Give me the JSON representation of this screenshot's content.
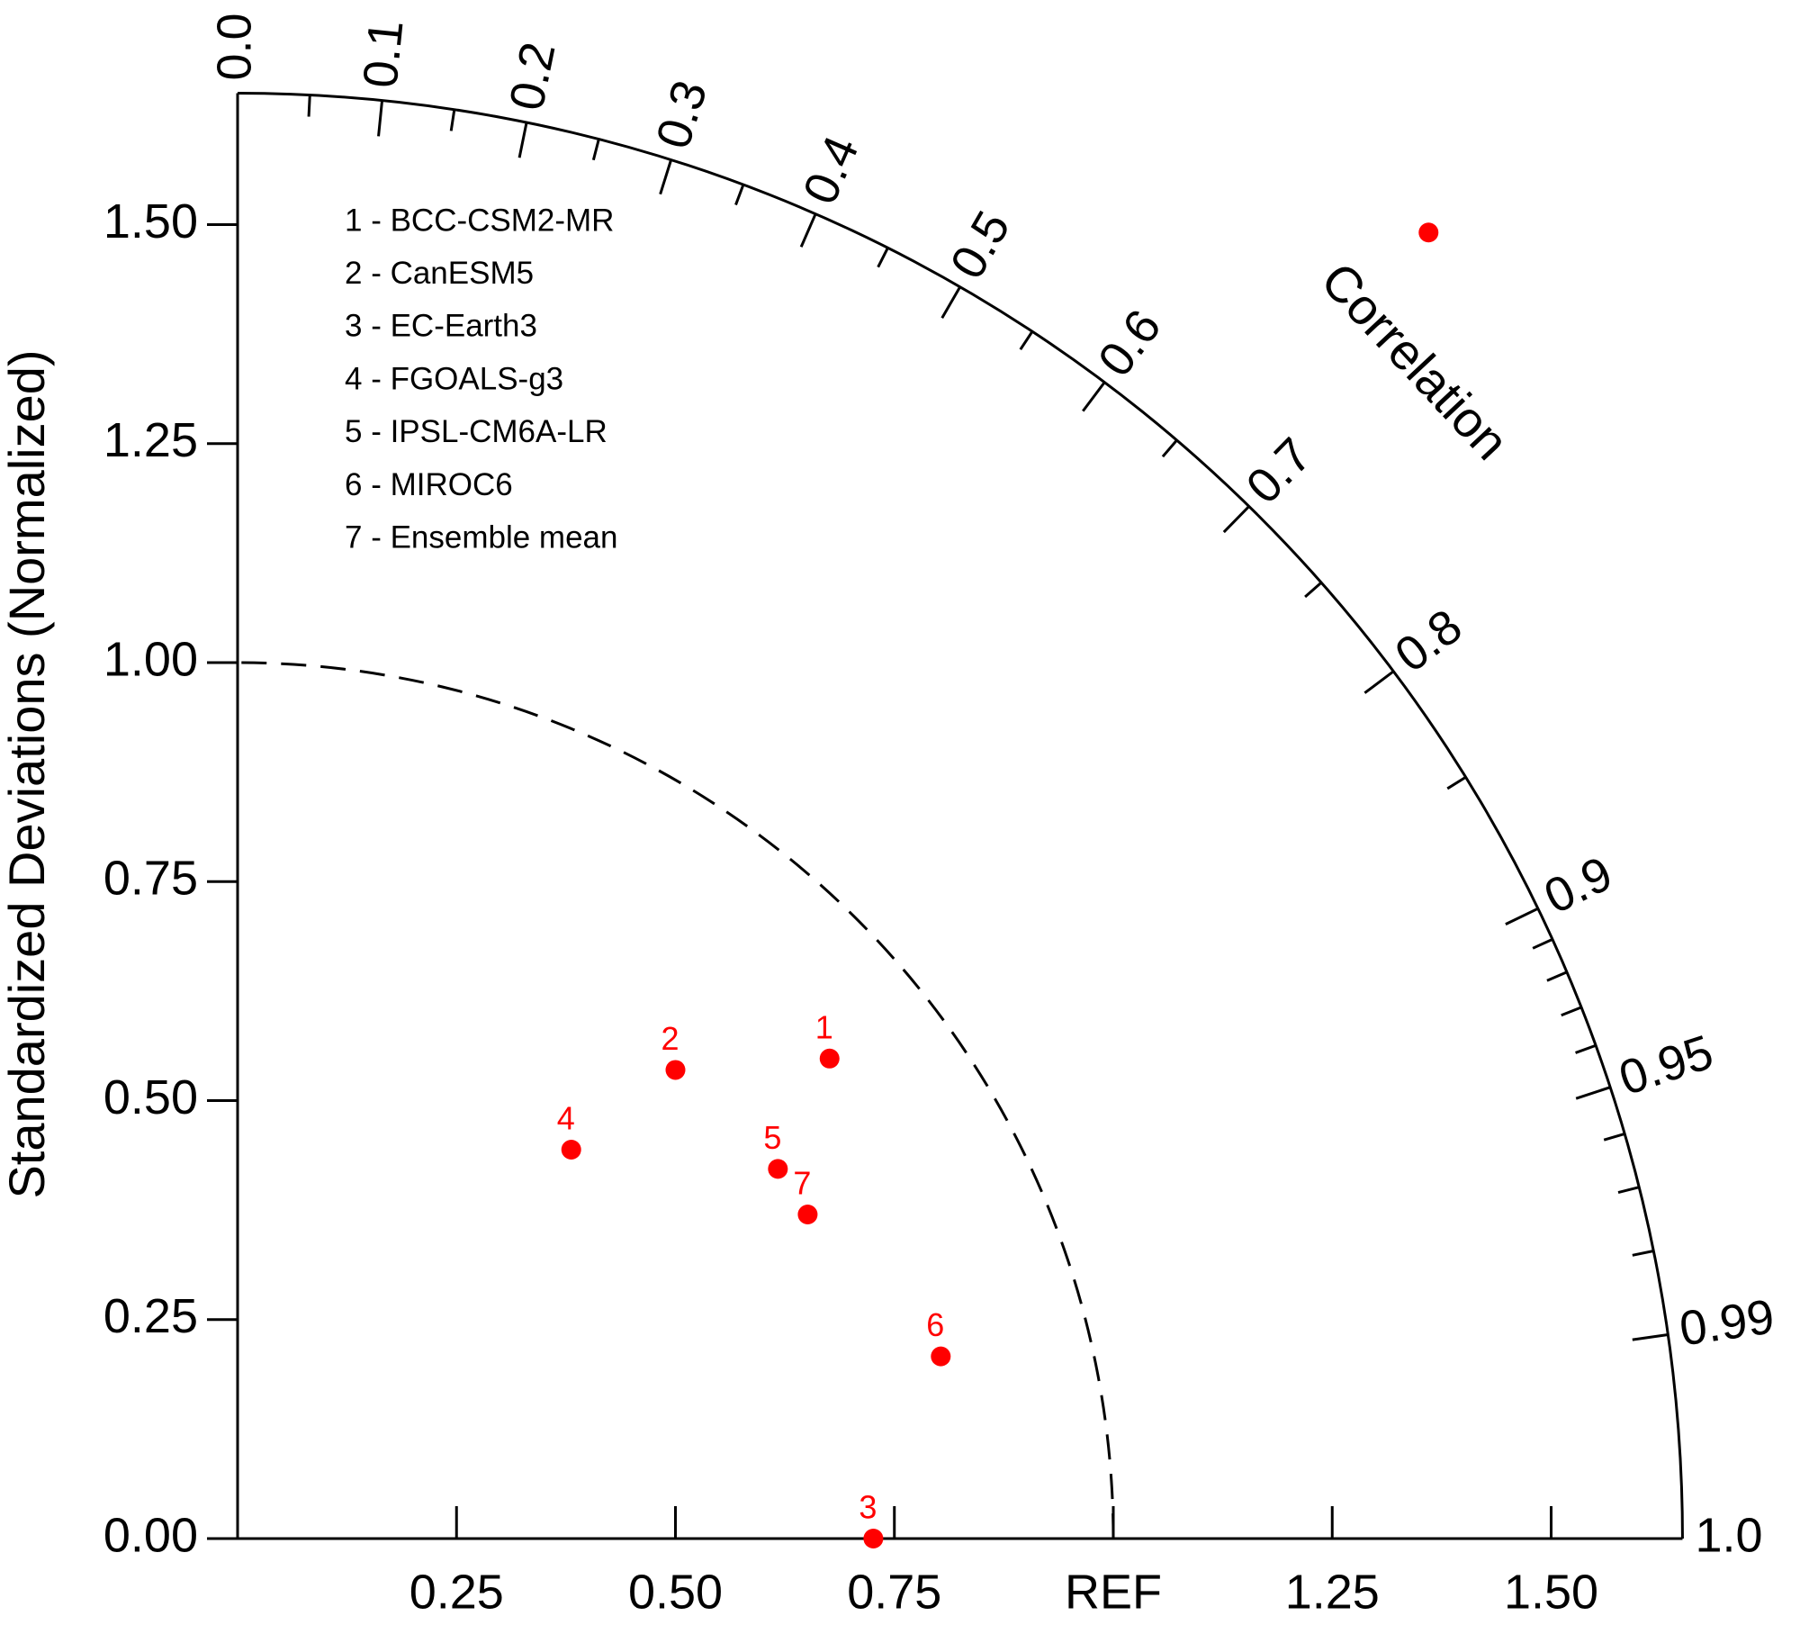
{
  "chart_data": {
    "type": "taylor",
    "ylabel": "Standardized Deviations (Normalized)",
    "corr_label": "Correlation",
    "xlim": [
      0,
      1.65
    ],
    "ylim": [
      0,
      1.65
    ],
    "yticks": [
      {
        "value": 0,
        "label": "0.00"
      },
      {
        "value": 0.25,
        "label": "0.25"
      },
      {
        "value": 0.5,
        "label": "0.50"
      },
      {
        "value": 0.75,
        "label": "0.75"
      },
      {
        "value": 1,
        "label": "1.00"
      },
      {
        "value": 1.25,
        "label": "1.25"
      },
      {
        "value": 1.5,
        "label": "1.50"
      }
    ],
    "xticks": [
      {
        "value": 0.25,
        "label": "0.25"
      },
      {
        "value": 0.5,
        "label": "0.50"
      },
      {
        "value": 0.75,
        "label": "0.75"
      },
      {
        "value": 1,
        "label": "REF"
      },
      {
        "value": 1.25,
        "label": "1.25"
      },
      {
        "value": 1.5,
        "label": "1.50"
      }
    ],
    "ref_std": 1,
    "corr_ticks": [
      {
        "value": 0,
        "label": "0.0"
      },
      0.1,
      0.2,
      0.3,
      0.4,
      0.5,
      0.6,
      0.7,
      0.8,
      0.9,
      0.95,
      0.99,
      {
        "value": 1,
        "label": "1.0"
      }
    ],
    "corr_minor_ticks": [
      0.05,
      0.15,
      0.25,
      0.35,
      0.45,
      0.55,
      0.65,
      0.75,
      0.85,
      0.91,
      0.92,
      0.93,
      0.94,
      0.96,
      0.97,
      0.98
    ],
    "legend": [
      "1 - BCC-CSM2-MR",
      "2 - CanESM5",
      "3 - EC-Earth3",
      "4 - FGOALS-g3",
      "5 - IPSL-CM6A-LR",
      "6 - MIROC6",
      "7 - Ensemble mean"
    ],
    "points": {
      "color": "#ff0000",
      "labels": [
        "1",
        "2",
        "3",
        "4",
        "5",
        "6",
        "7",
        null
      ],
      "x": [
        0.676,
        0.5,
        0.726,
        0.381,
        0.617,
        0.803,
        0.651,
        1.36
      ],
      "y": [
        0.548,
        0.535,
        0,
        0.444,
        0.422,
        0.208,
        0.37,
        1.491
      ]
    }
  }
}
